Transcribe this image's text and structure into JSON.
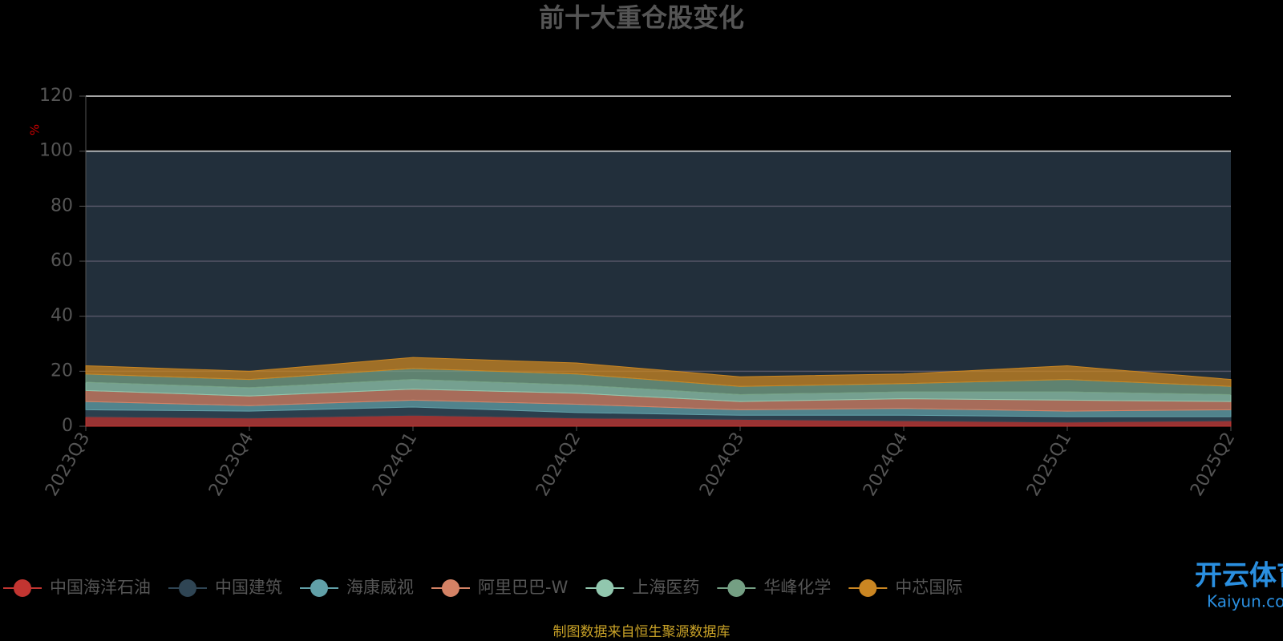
{
  "chart_data": {
    "type": "stacked_area",
    "title": "前十大重仓股变化",
    "y_label": "%",
    "categories": [
      "2023Q3",
      "2023Q4",
      "2024Q1",
      "2024Q2",
      "2024Q3",
      "2024Q4",
      "2025Q1",
      "2025Q2"
    ],
    "series": [
      {
        "name": "中国海洋石油",
        "color": "#c23531",
        "values": [
          3.5,
          3,
          4,
          3,
          2.5,
          2,
          1.5,
          2
        ]
      },
      {
        "name": "中国建筑",
        "color": "#2f4554",
        "values": [
          2.5,
          2.5,
          3,
          2,
          1.5,
          2,
          2,
          1.5
        ]
      },
      {
        "name": "海康威视",
        "color": "#61a0a8",
        "values": [
          3,
          2,
          2.5,
          3,
          2,
          2.5,
          2,
          2.5
        ]
      },
      {
        "name": "阿里巴巴-W",
        "color": "#d48265",
        "values": [
          4,
          3.5,
          4,
          4,
          3,
          3.5,
          4,
          3
        ]
      },
      {
        "name": "上海医药",
        "color": "#91c7ae",
        "values": [
          3,
          3,
          3.5,
          3,
          2.5,
          2.5,
          3,
          2.5
        ]
      },
      {
        "name": "华峰化学",
        "color": "#749f83",
        "values": [
          3,
          3,
          4,
          4,
          3,
          3,
          4.5,
          3
        ]
      },
      {
        "name": "中芯国际",
        "color": "#ca8622",
        "values": [
          3,
          3,
          4,
          4,
          3.5,
          3.5,
          5,
          2.5
        ]
      }
    ],
    "band": [
      0,
      100
    ],
    "band_color": "#222f3b",
    "ylim": [
      0,
      120
    ],
    "yticks": [
      0,
      20,
      40,
      60,
      80,
      100,
      120
    ],
    "grid": true,
    "source": "制图数据来自恒生聚源数据库",
    "watermark": [
      "开云体育",
      "Kaiyun.com"
    ]
  }
}
